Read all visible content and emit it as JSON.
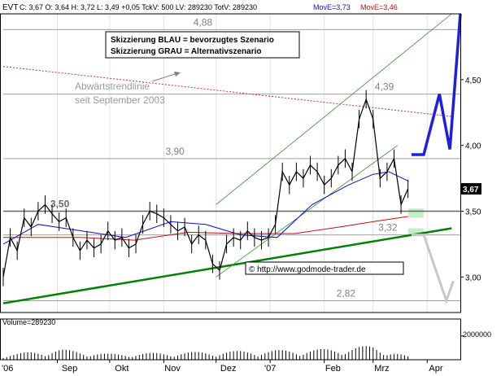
{
  "header": {
    "symbol": "EVT",
    "stats": "C: 3,67  O: 3,64  H: 3,72  L: 3,49  +0,05  TckV: 500  LV: 289230  TotV: 289230",
    "ma_blue": "MovE=3,73",
    "ma_red": "MovE=3,46"
  },
  "legend": {
    "line1": "Skizzierung BLAU = bevorzugtes Szenario",
    "line2": "Skizzierung GRAU = Alternativszenario"
  },
  "annotations": {
    "trendline_note_1": "Abwärtstrendlinie",
    "trendline_note_2": "seit September 2003",
    "copyright": "© http://www.godmode-trader.de"
  },
  "colors": {
    "price": "#000000",
    "ma_blue": "#1010c8",
    "ma_red": "#c81010",
    "uptrend": "#008000",
    "channel": "#2e8b2e",
    "downtrend": "#c83232",
    "scenario_blue": "#1f1fe0",
    "scenario_gray": "#c8c8c8",
    "support_zone": "#c8ecc8",
    "level_text": "#808080"
  },
  "volume": {
    "label": "Volume=289230",
    "tick_label": "2000000"
  },
  "chart_data": {
    "type": "line",
    "title": "EVT",
    "y_axis": {
      "ticks": [
        3.0,
        3.5,
        4.0,
        4.5
      ],
      "tick_labels": [
        "3,00",
        "3,50",
        "4,00",
        "4,50"
      ],
      "current_label": "3,67",
      "ylim": [
        2.73,
        5.0
      ]
    },
    "x_axis": {
      "month_labels": [
        "'06",
        "Sep",
        "Okt",
        "Nov",
        "Dez",
        "'07",
        "Feb",
        "Mrz",
        "Apr"
      ],
      "range": [
        "2006-08-01",
        "2007-04-20"
      ]
    },
    "levels": [
      {
        "value": 4.88,
        "label": "4,88"
      },
      {
        "value": 4.39,
        "label": "4,39"
      },
      {
        "value": 3.9,
        "label": "3,90"
      },
      {
        "value": 3.5,
        "label": "3,50"
      },
      {
        "value": 3.32,
        "label": "3,32"
      },
      {
        "value": 2.82,
        "label": "2,82"
      }
    ],
    "price_series": {
      "name": "EVT",
      "x": [
        "2006-08-01",
        "2006-08-05",
        "2006-08-09",
        "2006-08-13",
        "2006-08-17",
        "2006-08-21",
        "2006-08-25",
        "2006-08-29",
        "2006-09-02",
        "2006-09-06",
        "2006-09-10",
        "2006-09-14",
        "2006-09-18",
        "2006-09-22",
        "2006-09-26",
        "2006-09-30",
        "2006-10-04",
        "2006-10-08",
        "2006-10-12",
        "2006-10-16",
        "2006-10-20",
        "2006-10-24",
        "2006-10-28",
        "2006-11-01",
        "2006-11-05",
        "2006-11-09",
        "2006-11-13",
        "2006-11-17",
        "2006-11-21",
        "2006-11-25",
        "2006-11-29",
        "2006-12-03",
        "2006-12-07",
        "2006-12-11",
        "2006-12-15",
        "2006-12-19",
        "2006-12-23",
        "2006-12-27",
        "2006-12-31",
        "2007-01-04",
        "2007-01-08",
        "2007-01-12",
        "2007-01-16",
        "2007-01-20",
        "2007-01-24",
        "2007-01-28",
        "2007-02-01",
        "2007-02-05",
        "2007-02-09",
        "2007-02-13",
        "2007-02-17",
        "2007-02-21",
        "2007-02-25",
        "2007-03-01",
        "2007-03-05",
        "2007-03-09",
        "2007-03-13",
        "2007-03-17",
        "2007-03-21"
      ],
      "y": [
        3.0,
        3.3,
        3.2,
        3.45,
        3.38,
        3.5,
        3.55,
        3.48,
        3.42,
        3.45,
        3.3,
        3.2,
        3.28,
        3.22,
        3.25,
        3.35,
        3.28,
        3.3,
        3.22,
        3.25,
        3.4,
        3.5,
        3.48,
        3.45,
        3.4,
        3.35,
        3.38,
        3.25,
        3.32,
        3.28,
        3.1,
        3.05,
        3.25,
        3.3,
        3.28,
        3.35,
        3.3,
        3.28,
        3.3,
        3.4,
        3.8,
        3.7,
        3.8,
        3.75,
        3.85,
        3.8,
        3.7,
        3.75,
        3.85,
        3.9,
        3.8,
        4.2,
        4.35,
        4.2,
        3.75,
        3.8,
        3.9,
        3.55,
        3.67
      ]
    },
    "ma_blue_series": {
      "name": "MovE=3,73",
      "x": [
        "2006-08-01",
        "2006-08-21",
        "2006-09-15",
        "2006-10-10",
        "2006-11-05",
        "2006-11-25",
        "2006-12-15",
        "2007-01-05",
        "2007-01-25",
        "2007-02-15",
        "2007-03-01",
        "2007-03-10",
        "2007-03-21"
      ],
      "y": [
        3.25,
        3.4,
        3.35,
        3.3,
        3.42,
        3.4,
        3.32,
        3.3,
        3.55,
        3.7,
        3.78,
        3.8,
        3.73
      ]
    },
    "ma_red_series": {
      "name": "MovE=3,46",
      "x": [
        "2006-08-01",
        "2006-09-15",
        "2006-10-15",
        "2006-11-15",
        "2006-12-15",
        "2007-01-15",
        "2007-02-10",
        "2007-03-01",
        "2007-03-21"
      ],
      "y": [
        3.3,
        3.3,
        3.28,
        3.34,
        3.33,
        3.33,
        3.38,
        3.42,
        3.46
      ]
    },
    "trendlines": [
      {
        "name": "Abwärtstrendlinie",
        "x": [
          "2006-08-01",
          "2007-04-15"
        ],
        "y": [
          4.6,
          4.22
        ]
      },
      {
        "name": "uptrend",
        "x": [
          "2006-08-01",
          "2007-04-15"
        ],
        "y": [
          2.8,
          3.37
        ]
      },
      {
        "name": "channel-upper",
        "x": [
          "2006-12-01",
          "2007-04-15"
        ],
        "y": [
          3.55,
          5.0
        ]
      },
      {
        "name": "channel-lower",
        "x": [
          "2006-12-01",
          "2007-03-15"
        ],
        "y": [
          3.0,
          4.0
        ]
      }
    ],
    "scenario_blue": {
      "x": [
        "2007-03-23",
        "2007-03-30",
        "2007-04-08",
        "2007-04-14",
        "2007-04-20"
      ],
      "y": [
        3.93,
        3.93,
        4.39,
        3.97,
        5.0
      ]
    },
    "scenario_gray": {
      "x": [
        "2007-03-23",
        "2007-03-30",
        "2007-04-12",
        "2007-04-16"
      ],
      "y": [
        3.32,
        3.32,
        2.82,
        2.97
      ]
    },
    "volume_series": {
      "x": [
        "2006-08-01",
        "2006-09-01",
        "2006-10-01",
        "2006-11-01",
        "2006-12-01",
        "2007-01-01",
        "2007-02-01",
        "2007-03-01",
        "2007-03-21"
      ],
      "y": [
        400000,
        900000,
        500000,
        600000,
        700000,
        800000,
        900000,
        1200000,
        289230
      ]
    }
  }
}
